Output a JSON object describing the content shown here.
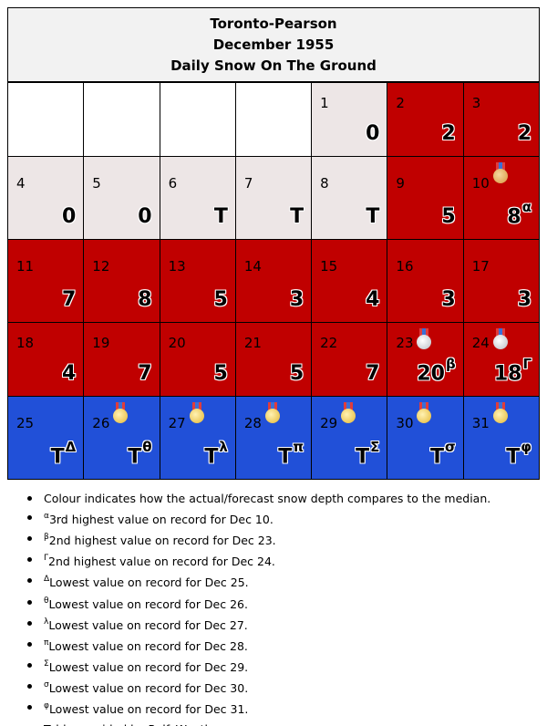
{
  "header": {
    "station": "Toronto-Pearson",
    "month": "December 1955",
    "subtitle": "Daily Snow On The Ground"
  },
  "colors": {
    "empty": "#ffffff",
    "low": "#ede6e6",
    "above_median": "#c00000",
    "record_low": "#2150d8"
  },
  "days": [
    {
      "day": "1",
      "value": "0",
      "sup": "",
      "tone": "low",
      "medal": ""
    },
    {
      "day": "2",
      "value": "2",
      "sup": "",
      "tone": "red",
      "medal": ""
    },
    {
      "day": "3",
      "value": "2",
      "sup": "",
      "tone": "red",
      "medal": ""
    },
    {
      "day": "4",
      "value": "0",
      "sup": "",
      "tone": "low",
      "medal": ""
    },
    {
      "day": "5",
      "value": "0",
      "sup": "",
      "tone": "low",
      "medal": ""
    },
    {
      "day": "6",
      "value": "T",
      "sup": "",
      "tone": "low",
      "medal": ""
    },
    {
      "day": "7",
      "value": "T",
      "sup": "",
      "tone": "low",
      "medal": ""
    },
    {
      "day": "8",
      "value": "T",
      "sup": "",
      "tone": "low",
      "medal": ""
    },
    {
      "day": "9",
      "value": "5",
      "sup": "",
      "tone": "red",
      "medal": ""
    },
    {
      "day": "10",
      "value": "8",
      "sup": "α",
      "tone": "red",
      "medal": "bronze-medal-icon"
    },
    {
      "day": "11",
      "value": "7",
      "sup": "",
      "tone": "red",
      "medal": ""
    },
    {
      "day": "12",
      "value": "8",
      "sup": "",
      "tone": "red",
      "medal": ""
    },
    {
      "day": "13",
      "value": "5",
      "sup": "",
      "tone": "red",
      "medal": ""
    },
    {
      "day": "14",
      "value": "3",
      "sup": "",
      "tone": "red",
      "medal": ""
    },
    {
      "day": "15",
      "value": "4",
      "sup": "",
      "tone": "red",
      "medal": ""
    },
    {
      "day": "16",
      "value": "3",
      "sup": "",
      "tone": "red",
      "medal": ""
    },
    {
      "day": "17",
      "value": "3",
      "sup": "",
      "tone": "red",
      "medal": ""
    },
    {
      "day": "18",
      "value": "4",
      "sup": "",
      "tone": "red",
      "medal": ""
    },
    {
      "day": "19",
      "value": "7",
      "sup": "",
      "tone": "red",
      "medal": ""
    },
    {
      "day": "20",
      "value": "5",
      "sup": "",
      "tone": "red",
      "medal": ""
    },
    {
      "day": "21",
      "value": "5",
      "sup": "",
      "tone": "red",
      "medal": ""
    },
    {
      "day": "22",
      "value": "7",
      "sup": "",
      "tone": "red",
      "medal": ""
    },
    {
      "day": "23",
      "value": "20",
      "sup": "β",
      "tone": "red",
      "medal": "silver-medal-icon"
    },
    {
      "day": "24",
      "value": "18",
      "sup": "Γ",
      "tone": "red",
      "medal": "silver-medal-icon"
    },
    {
      "day": "25",
      "value": "T",
      "sup": "Δ",
      "tone": "blue",
      "medal": ""
    },
    {
      "day": "26",
      "value": "T",
      "sup": "θ",
      "tone": "blue",
      "medal": "gold-medal-icon"
    },
    {
      "day": "27",
      "value": "T",
      "sup": "λ",
      "tone": "blue",
      "medal": "gold-medal-icon"
    },
    {
      "day": "28",
      "value": "T",
      "sup": "π",
      "tone": "blue",
      "medal": "gold-medal-icon"
    },
    {
      "day": "29",
      "value": "T",
      "sup": "Σ",
      "tone": "blue",
      "medal": "gold-medal-icon"
    },
    {
      "day": "30",
      "value": "T",
      "sup": "σ",
      "tone": "blue",
      "medal": "gold-medal-icon"
    },
    {
      "day": "31",
      "value": "T",
      "sup": "φ",
      "tone": "blue",
      "medal": "gold-medal-icon"
    }
  ],
  "notes": [
    {
      "sup": "",
      "text": "Colour indicates how the actual/forecast snow depth compares to the median."
    },
    {
      "sup": "α",
      "text": "3rd highest value on record for Dec 10."
    },
    {
      "sup": "β",
      "text": "2nd highest value on record for Dec 23."
    },
    {
      "sup": "Γ",
      "text": "2nd highest value on record for Dec 24."
    },
    {
      "sup": "Δ",
      "text": "Lowest value on record for Dec 25."
    },
    {
      "sup": "θ",
      "text": "Lowest value on record for Dec 26."
    },
    {
      "sup": "λ",
      "text": "Lowest value on record for Dec 27."
    },
    {
      "sup": "π",
      "text": "Lowest value on record for Dec 28."
    },
    {
      "sup": "Σ",
      "text": "Lowest value on record for Dec 29."
    },
    {
      "sup": "σ",
      "text": "Lowest value on record for Dec 30."
    },
    {
      "sup": "φ",
      "text": "Lowest value on record for Dec 31."
    },
    {
      "sup": "",
      "text": "Table provided by RolfsWeather.ca"
    }
  ]
}
